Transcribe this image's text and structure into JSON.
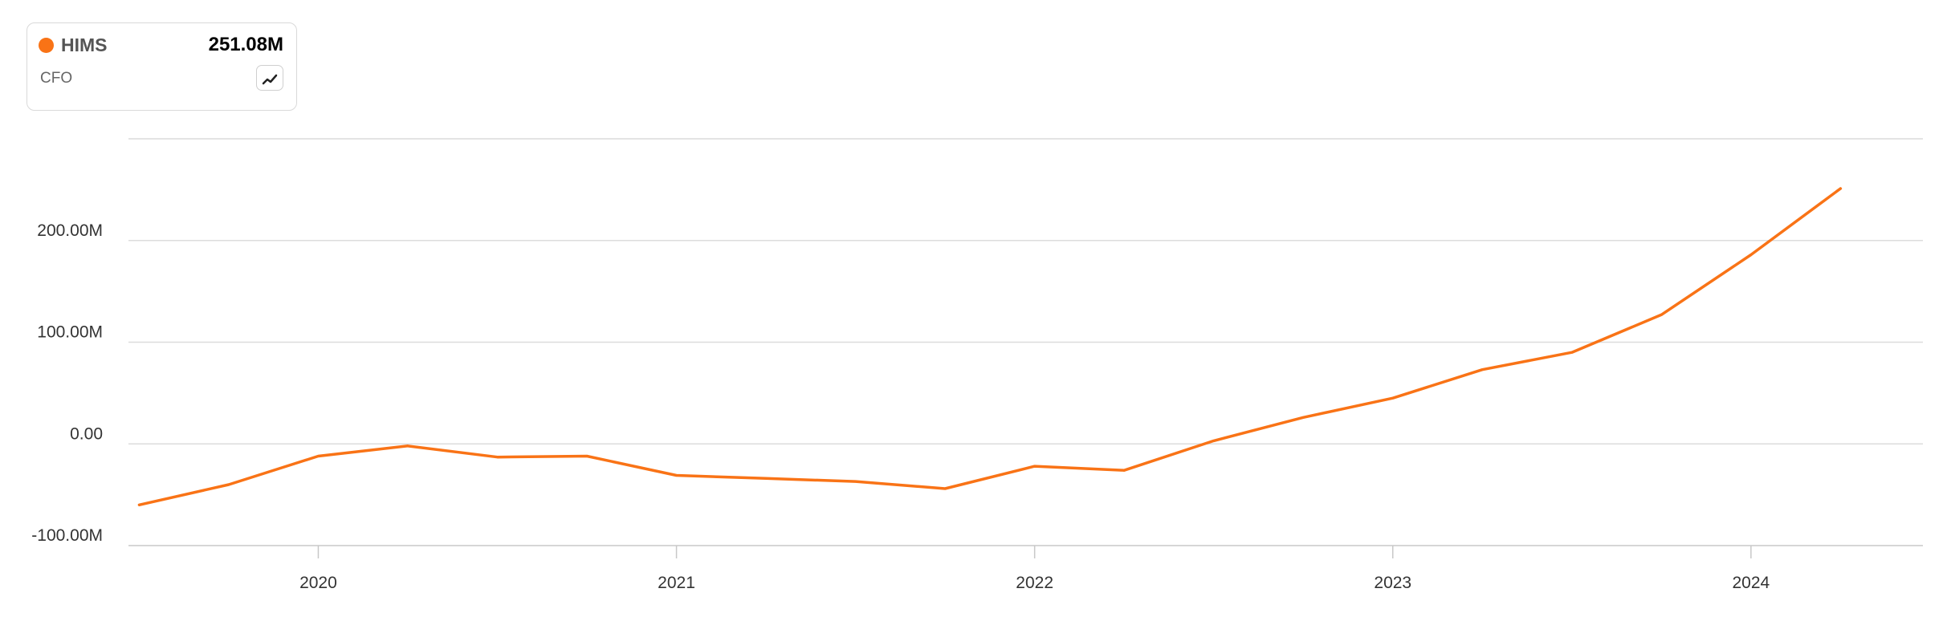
{
  "legend": {
    "ticker": "HIMS",
    "value": "251.08M",
    "metric": "CFO",
    "color": "#f97316"
  },
  "chart_data": {
    "type": "line",
    "title": "",
    "xlabel": "",
    "ylabel": "",
    "x_range": [
      2019.47,
      2024.48
    ],
    "ylim": [
      -100,
      300
    ],
    "grid": true,
    "y_ticks": [
      {
        "value": -100,
        "label": "-100.00M"
      },
      {
        "value": 0,
        "label": "0.00"
      },
      {
        "value": 100,
        "label": "100.00M"
      },
      {
        "value": 200,
        "label": "200.00M"
      },
      {
        "value": 300,
        "label": ""
      }
    ],
    "x_ticks": [
      {
        "value": 2020,
        "label": "2020"
      },
      {
        "value": 2021,
        "label": "2021"
      },
      {
        "value": 2022,
        "label": "2022"
      },
      {
        "value": 2023,
        "label": "2023"
      },
      {
        "value": 2024,
        "label": "2024"
      }
    ],
    "series": [
      {
        "color": "#f97316",
        "points": [
          {
            "x": 2019.5,
            "y": -60
          },
          {
            "x": 2019.75,
            "y": -40
          },
          {
            "x": 2020.0,
            "y": -12
          },
          {
            "x": 2020.25,
            "y": -2
          },
          {
            "x": 2020.5,
            "y": -13
          },
          {
            "x": 2020.75,
            "y": -12
          },
          {
            "x": 2021.0,
            "y": -31
          },
          {
            "x": 2021.25,
            "y": -34
          },
          {
            "x": 2021.5,
            "y": -37
          },
          {
            "x": 2021.75,
            "y": -44
          },
          {
            "x": 2022.0,
            "y": -22
          },
          {
            "x": 2022.25,
            "y": -26
          },
          {
            "x": 2022.5,
            "y": 3
          },
          {
            "x": 2022.75,
            "y": 26
          },
          {
            "x": 2023.0,
            "y": 45
          },
          {
            "x": 2023.25,
            "y": 73
          },
          {
            "x": 2023.5,
            "y": 90
          },
          {
            "x": 2023.75,
            "y": 127
          },
          {
            "x": 2024.0,
            "y": 186
          },
          {
            "x": 2024.25,
            "y": 251.08
          }
        ]
      }
    ]
  }
}
